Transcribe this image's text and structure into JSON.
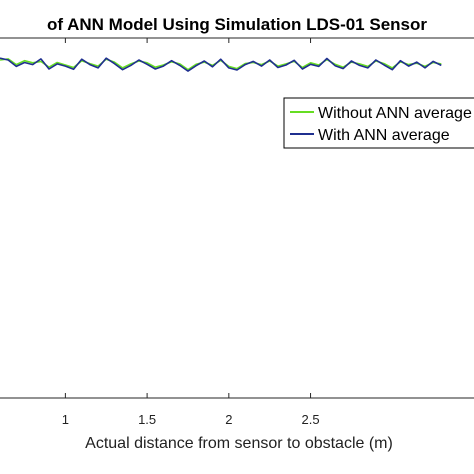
{
  "chart_data": {
    "type": "line",
    "title": "of ANN Model Using Simulation LDS-01 Sensor",
    "xlabel": "Actual distance from sensor to obstacle (m)",
    "ylabel": "",
    "xlim": [
      0.6,
      3.5
    ],
    "ylim": [
      0,
      1
    ],
    "x_ticks": [
      {
        "value": 1,
        "label": "1"
      },
      {
        "value": 1.5,
        "label": "1.5"
      },
      {
        "value": 2,
        "label": "2"
      },
      {
        "value": 2.5,
        "label": "2.5"
      }
    ],
    "grid": false,
    "legend_position": "top-right",
    "x": [
      0.6,
      0.65,
      0.7,
      0.75,
      0.8,
      0.85,
      0.9,
      0.95,
      1.0,
      1.05,
      1.1,
      1.15,
      1.2,
      1.25,
      1.3,
      1.35,
      1.4,
      1.45,
      1.5,
      1.55,
      1.6,
      1.65,
      1.7,
      1.75,
      1.8,
      1.85,
      1.9,
      1.95,
      2.0,
      2.05,
      2.1,
      2.15,
      2.2,
      2.25,
      2.3,
      2.35,
      2.4,
      2.45,
      2.5,
      2.55,
      2.6,
      2.65,
      2.7,
      2.75,
      2.8,
      2.85,
      2.9,
      2.95,
      3.0,
      3.05,
      3.1,
      3.15,
      3.2,
      3.25,
      3.3
    ],
    "series": [
      {
        "name": "Without ANN average",
        "color": "#66dd22",
        "values": [
          0.939,
          0.942,
          0.926,
          0.937,
          0.931,
          0.935,
          0.919,
          0.932,
          0.925,
          0.918,
          0.937,
          0.929,
          0.922,
          0.941,
          0.933,
          0.917,
          0.928,
          0.936,
          0.931,
          0.919,
          0.925,
          0.934,
          0.928,
          0.912,
          0.927,
          0.933,
          0.924,
          0.938,
          0.921,
          0.915,
          0.929,
          0.932,
          0.926,
          0.936,
          0.922,
          0.928,
          0.935,
          0.918,
          0.931,
          0.925,
          0.94,
          0.927,
          0.919,
          0.933,
          0.928,
          0.921,
          0.936,
          0.929,
          0.917,
          0.934,
          0.926,
          0.93,
          0.921,
          0.932,
          0.928
        ]
      },
      {
        "name": "With ANN average",
        "color": "#1f2f8f",
        "values": [
          0.944,
          0.939,
          0.921,
          0.932,
          0.926,
          0.942,
          0.914,
          0.928,
          0.922,
          0.913,
          0.941,
          0.926,
          0.917,
          0.944,
          0.929,
          0.912,
          0.924,
          0.939,
          0.927,
          0.914,
          0.922,
          0.937,
          0.924,
          0.908,
          0.923,
          0.936,
          0.92,
          0.941,
          0.917,
          0.911,
          0.926,
          0.935,
          0.922,
          0.939,
          0.918,
          0.925,
          0.938,
          0.914,
          0.927,
          0.921,
          0.943,
          0.923,
          0.915,
          0.936,
          0.924,
          0.917,
          0.939,
          0.925,
          0.912,
          0.937,
          0.922,
          0.933,
          0.917,
          0.935,
          0.924
        ]
      }
    ]
  }
}
